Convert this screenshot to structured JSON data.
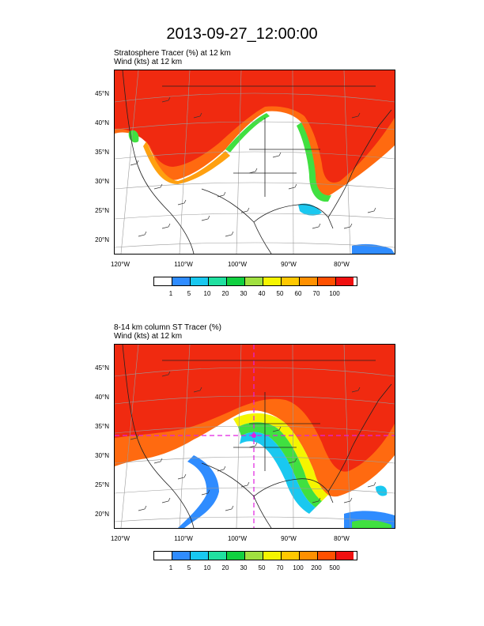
{
  "title": "2013-09-27_12:00:00",
  "panels": [
    {
      "id": "stratosphere-tracer",
      "subtitle_line1": "Stratosphere Tracer   (%)     at   12 km",
      "subtitle_line2": "Wind   (kts)     at   12 km",
      "lat_labels": [
        "45°N",
        "40°N",
        "35°N",
        "30°N",
        "25°N",
        "20°N"
      ],
      "lon_labels": [
        "120°W",
        "110°W",
        "100°W",
        "90°W",
        "80°W"
      ],
      "colorbar_labels": [
        "1",
        "5",
        "10",
        "20",
        "30",
        "40",
        "50",
        "60",
        "70",
        "100"
      ]
    },
    {
      "id": "column-st-tracer",
      "subtitle_line1": "8-14 km column ST Tracer    (%)",
      "subtitle_line2": "Wind   (kts)     at   12 km",
      "lat_labels": [
        "45°N",
        "40°N",
        "35°N",
        "30°N",
        "25°N",
        "20°N"
      ],
      "lon_labels": [
        "120°W",
        "110°W",
        "100°W",
        "90°W",
        "80°W"
      ],
      "colorbar_labels": [
        "1",
        "5",
        "10",
        "20",
        "30",
        "50",
        "70",
        "100",
        "200",
        "500"
      ]
    }
  ],
  "colorbar_colors": [
    "#ffffff",
    "#2f8cff",
    "#19c8f0",
    "#20e0a0",
    "#10d040",
    "#a0e040",
    "#f5f500",
    "#ffc800",
    "#ff9000",
    "#ff5000",
    "#f01010"
  ],
  "map_colors": {
    "high": "#f02a10",
    "upper": "#ff6a10",
    "mid": "#ffa010",
    "yellow": "#f5f500",
    "green": "#40e040",
    "cyan": "#19c8f0",
    "blue": "#2f8cff",
    "magenta": "#e020e0"
  }
}
